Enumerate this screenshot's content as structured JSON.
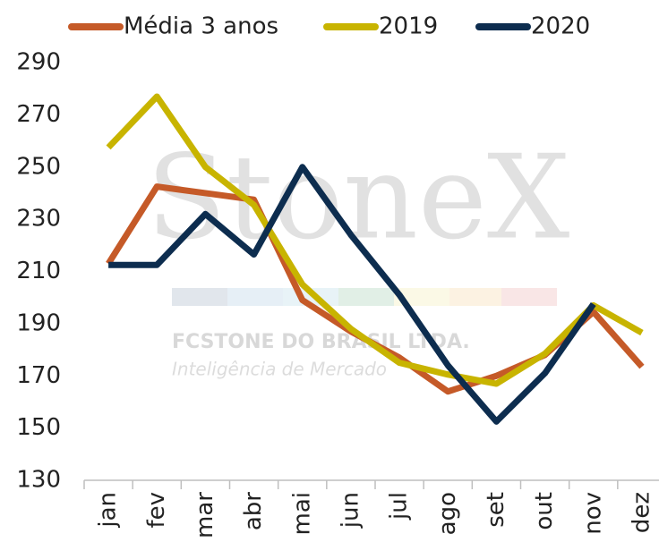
{
  "chart_data": {
    "type": "line",
    "categories": [
      "jan",
      "fev",
      "mar",
      "abr",
      "mai",
      "jun",
      "jul",
      "ago",
      "set",
      "out",
      "nov",
      "dez"
    ],
    "series": [
      {
        "name": "Média 3 anos",
        "color": "#c55a28",
        "values": [
          213,
          242.5,
          240,
          237.5,
          199,
          187,
          177,
          164,
          170,
          178,
          194.5,
          173.5
        ]
      },
      {
        "name": "2019",
        "color": "#c8b400",
        "values": [
          257.5,
          277,
          250,
          235.5,
          205,
          188,
          175,
          170.5,
          167,
          178.5,
          197,
          186.5
        ]
      },
      {
        "name": "2020",
        "color": "#0d2d4f",
        "values": [
          212.5,
          212.5,
          232,
          216.5,
          250,
          224,
          201,
          174,
          152.5,
          171,
          197.5,
          null
        ]
      }
    ],
    "ylim": [
      130,
      290
    ],
    "yticks": [
      130,
      150,
      170,
      190,
      210,
      230,
      250,
      270,
      290
    ],
    "grid": false,
    "legend": "top",
    "watermark": [
      "StoneX",
      "FCSTONE DO BRASIL LTDA.",
      "Inteligência de Mercado"
    ]
  }
}
